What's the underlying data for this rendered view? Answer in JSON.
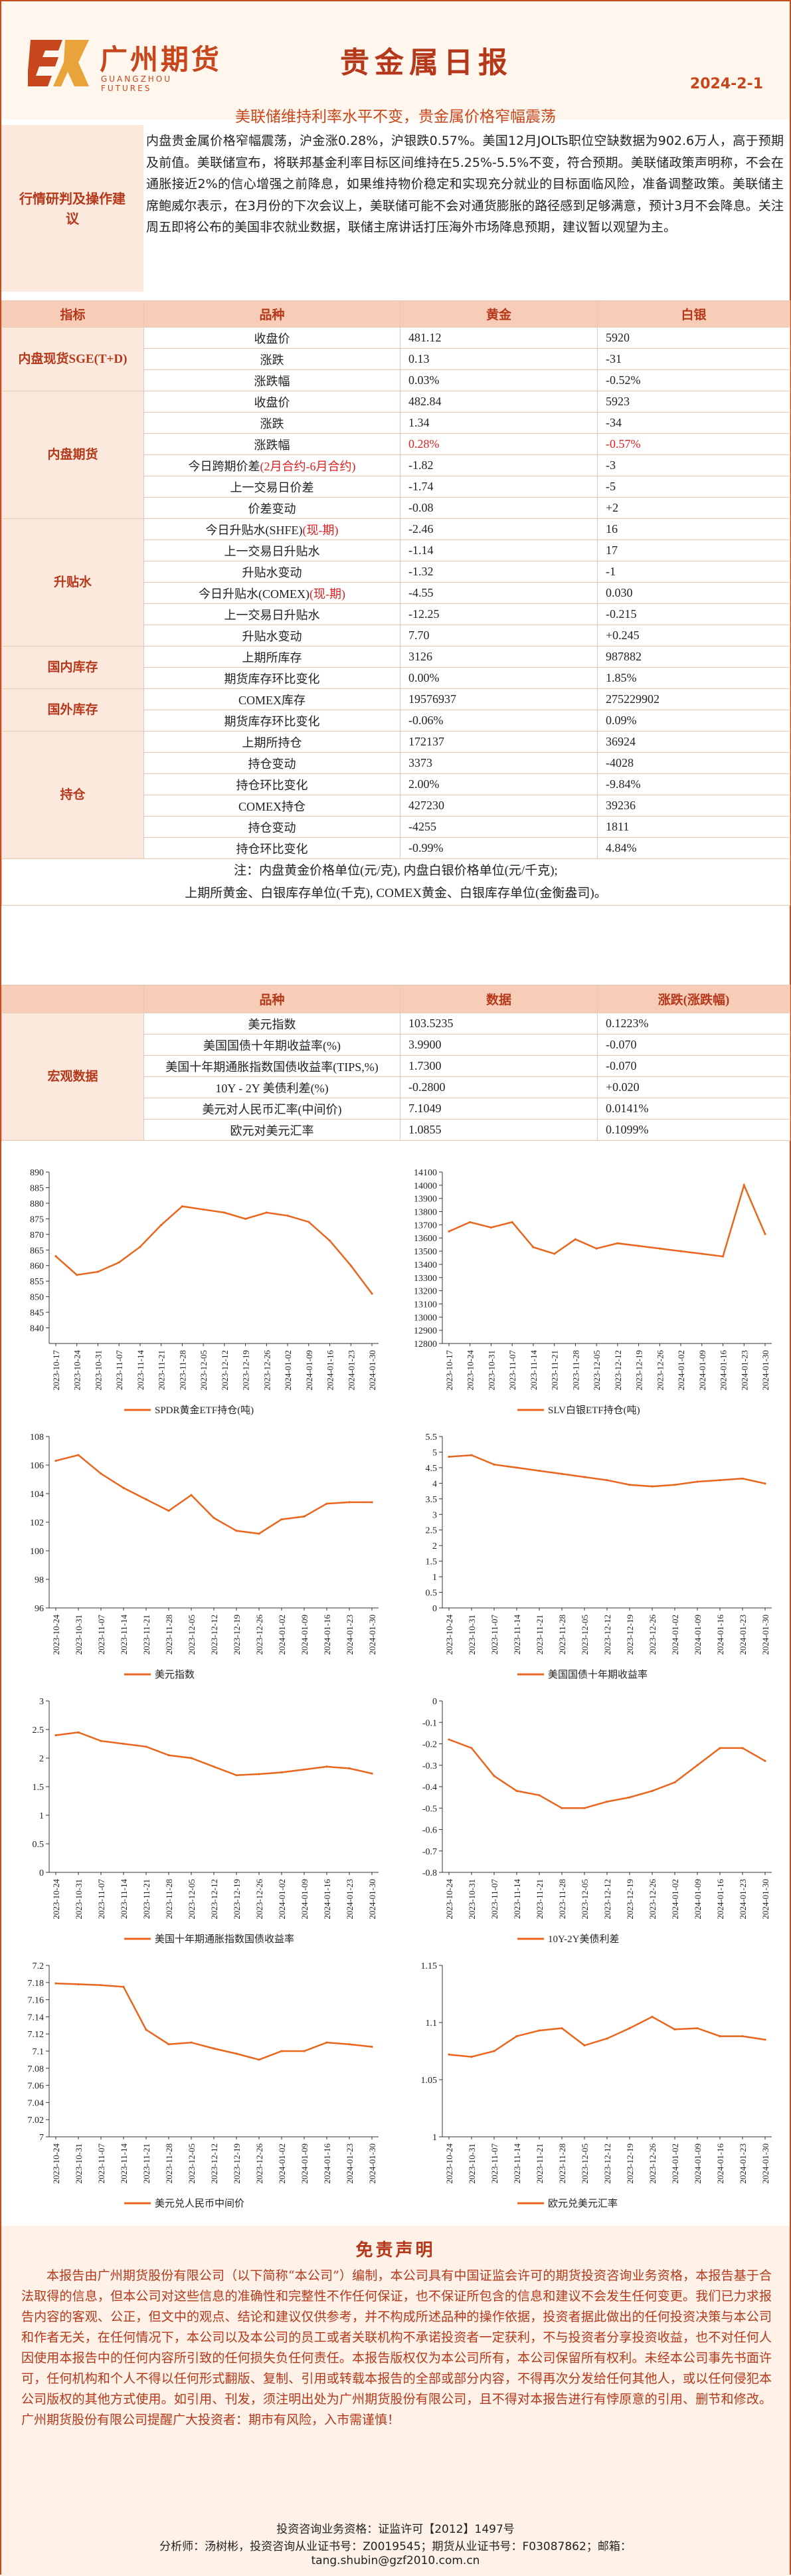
{
  "header": {
    "logo_cn": "广州期货",
    "logo_en": "GUANGZHOU FUTURES",
    "title": "贵金属日报",
    "date": "2024-2-1",
    "subtitle": "美联储维持利率水平不变，贵金属价格窄幅震荡",
    "colors": {
      "brand": "#c8461c",
      "label_bg": "#fce9de",
      "head_bg": "#f7cdb8",
      "line": "#e8661e"
    }
  },
  "view": {
    "label": "行情研判及操作建议",
    "text": "内盘贵金属价格窄幅震荡，沪金涨0.28%，沪银跌0.57%。美国12月JOLTs职位空缺数据为902.6万人，高于预期及前值。美联储宣布，将联邦基金利率目标区间维持在5.25%-5.5%不变，符合预期。美联储政策声明称，不会在通胀接近2%的信心增强之前降息，如果维持物价稳定和实现充分就业的目标面临风险，准备调整政策。美联储主席鲍威尔表示，在3月份的下次会议上，美联储可能不会对通货膨胀的路径感到足够满意，预计3月不会降息。关注周五即将公布的美国非农就业数据，联储主席讲话打压海外市场降息预期，建议暂以观望为主。"
  },
  "table1": {
    "headers": [
      "指标",
      "品种",
      "黄金",
      "白银"
    ],
    "groups": [
      {
        "name": "内盘现货SGE(T+D)",
        "rows": [
          {
            "label": "收盘价",
            "gold": "481.12",
            "silver": "5920"
          },
          {
            "label": "涨跌",
            "gold": "0.13",
            "silver": "-31"
          },
          {
            "label": "涨跌幅",
            "gold": "0.03%",
            "silver": "-0.52%"
          }
        ]
      },
      {
        "name": "内盘期货",
        "rows": [
          {
            "label": "收盘价",
            "gold": "482.84",
            "silver": "5923"
          },
          {
            "label": "涨跌",
            "gold": "1.34",
            "silver": "-34"
          },
          {
            "label": "涨跌幅",
            "gold": "0.28%",
            "silver": "-0.57%",
            "red": true
          },
          {
            "label": "今日跨期价差",
            "label_red": "(2月合约-6月合约)",
            "gold": "-1.82",
            "silver": "-3"
          },
          {
            "label": "上一交易日价差",
            "gold": "-1.74",
            "silver": "-5"
          },
          {
            "label": "价差变动",
            "gold": "-0.08",
            "silver": "+2"
          }
        ]
      },
      {
        "name": "升贴水",
        "rows": [
          {
            "label": "今日升贴水(SHFE)",
            "label_red": "(现-期)",
            "gold": "-2.46",
            "silver": "16"
          },
          {
            "label": "上一交易日升贴水",
            "gold": "-1.14",
            "silver": "17"
          },
          {
            "label": "升贴水变动",
            "gold": "-1.32",
            "silver": "-1"
          },
          {
            "label": "今日升贴水(COMEX)",
            "label_red": "(现-期)",
            "gold": "-4.55",
            "silver": "0.030"
          },
          {
            "label": "上一交易日升贴水",
            "gold": "-12.25",
            "silver": "-0.215"
          },
          {
            "label": "升贴水变动",
            "gold": "7.70",
            "silver": "+0.245"
          }
        ]
      },
      {
        "name": "国内库存",
        "rows": [
          {
            "label": "上期所库存",
            "gold": "3126",
            "silver": "987882"
          },
          {
            "label": "期货库存环比变化",
            "gold": "0.00%",
            "silver": "1.85%"
          }
        ]
      },
      {
        "name": "国外库存",
        "rows": [
          {
            "label": "COMEX库存",
            "gold": "19576937",
            "silver": "275229902"
          },
          {
            "label": "期货库存环比变化",
            "gold": "-0.06%",
            "silver": "0.09%"
          }
        ]
      },
      {
        "name": "持仓",
        "rows": [
          {
            "label": "上期所持仓",
            "gold": "172137",
            "silver": "36924"
          },
          {
            "label": "持仓变动",
            "gold": "3373",
            "silver": "-4028"
          },
          {
            "label": "持仓环比变化",
            "gold": "2.00%",
            "silver": "-9.84%"
          },
          {
            "label": "COMEX持仓",
            "gold": "427230",
            "silver": "39236"
          },
          {
            "label": "持仓变动",
            "gold": "-4255",
            "silver": "1811"
          },
          {
            "label": "持仓环比变化",
            "gold": "-0.99%",
            "silver": "4.84%"
          }
        ]
      }
    ],
    "note1": "注：内盘黄金价格单位(元/克), 内盘白银价格单位(元/千克);",
    "note2": "上期所黄金、白银库存单位(千克), COMEX黄金、白银库存单位(金衡盎司)。"
  },
  "table2": {
    "headers": [
      "",
      "品种",
      "数据",
      "涨跌(涨跌幅)"
    ],
    "group": "宏观数据",
    "rows": [
      {
        "label": "美元指数",
        "value": "103.5235",
        "change": "0.1223%"
      },
      {
        "label": "美国国债十年期收益率(%)",
        "value": "3.9900",
        "change": "-0.070"
      },
      {
        "label": "美国十年期通胀指数国债收益率(TIPS,%)",
        "value": "1.7300",
        "change": "-0.070"
      },
      {
        "label": "10Y - 2Y 美债利差(%)",
        "value": "-0.2800",
        "change": "+0.020"
      },
      {
        "label": "美元对人民币汇率(中间价)",
        "value": "7.1049",
        "change": "0.0141%"
      },
      {
        "label": "欧元对美元汇率",
        "value": "1.0855",
        "change": "0.1099%"
      }
    ]
  },
  "chart_data": [
    {
      "type": "line",
      "title": "",
      "legend": "SPDR黄金ETF持仓(吨)",
      "ylim": [
        835,
        890
      ],
      "yticks": [
        840,
        845,
        850,
        855,
        860,
        865,
        870,
        875,
        880,
        885,
        890
      ],
      "x": [
        "2023-10-17",
        "2023-10-24",
        "2023-10-31",
        "2023-11-07",
        "2023-11-14",
        "2023-11-21",
        "2023-11-28",
        "2023-12-05",
        "2023-12-12",
        "2023-12-19",
        "2023-12-26",
        "2024-01-02",
        "2024-01-09",
        "2024-01-16",
        "2024-01-23",
        "2024-01-30"
      ],
      "values": [
        863,
        857,
        858,
        861,
        866,
        873,
        879,
        878,
        877,
        875,
        877,
        876,
        874,
        868,
        860,
        851
      ]
    },
    {
      "type": "line",
      "title": "",
      "legend": "SLV白银ETF持仓(吨)",
      "ylim": [
        12800,
        14100
      ],
      "yticks": [
        12800,
        12900,
        13000,
        13100,
        13200,
        13300,
        13400,
        13500,
        13600,
        13700,
        13800,
        13900,
        14000,
        14100
      ],
      "x": [
        "2023-10-17",
        "2023-10-24",
        "2023-10-31",
        "2023-11-07",
        "2023-11-14",
        "2023-11-21",
        "2023-11-28",
        "2023-12-05",
        "2023-12-12",
        "2023-12-19",
        "2023-12-26",
        "2024-01-02",
        "2024-01-09",
        "2024-01-16",
        "2024-01-23",
        "2024-01-30"
      ],
      "values": [
        13650,
        13720,
        13680,
        13720,
        13530,
        13480,
        13590,
        13520,
        13560,
        13540,
        13520,
        13500,
        13480,
        13460,
        14000,
        13630
      ]
    },
    {
      "type": "line",
      "title": "",
      "legend": "美元指数",
      "ylim": [
        96,
        108
      ],
      "yticks": [
        96,
        98,
        100,
        102,
        104,
        106,
        108
      ],
      "x": [
        "2023-10-24",
        "2023-10-31",
        "2023-11-07",
        "2023-11-14",
        "2023-11-21",
        "2023-11-28",
        "2023-12-05",
        "2023-12-12",
        "2023-12-19",
        "2023-12-26",
        "2024-01-02",
        "2024-01-09",
        "2024-01-16",
        "2024-01-23",
        "2024-01-30"
      ],
      "values": [
        106.3,
        106.7,
        105.4,
        104.4,
        103.6,
        102.8,
        103.9,
        102.3,
        101.4,
        101.2,
        102.2,
        102.4,
        103.3,
        103.4,
        103.4
      ]
    },
    {
      "type": "line",
      "title": "",
      "legend": "美国国债十年期收益率",
      "ylim": [
        0,
        5.5
      ],
      "yticks": [
        0,
        0.5,
        1,
        1.5,
        2,
        2.5,
        3,
        3.5,
        4,
        4.5,
        5,
        5.5
      ],
      "x": [
        "2023-10-24",
        "2023-10-31",
        "2023-11-07",
        "2023-11-14",
        "2023-11-21",
        "2023-11-28",
        "2023-12-05",
        "2023-12-12",
        "2023-12-19",
        "2023-12-26",
        "2024-01-02",
        "2024-01-09",
        "2024-01-16",
        "2024-01-23",
        "2024-01-30"
      ],
      "values": [
        4.85,
        4.9,
        4.6,
        4.5,
        4.4,
        4.3,
        4.2,
        4.1,
        3.95,
        3.9,
        3.95,
        4.05,
        4.1,
        4.15,
        3.99
      ]
    },
    {
      "type": "line",
      "title": "",
      "legend": "美国十年期通胀指数国债收益率",
      "ylim": [
        0,
        3
      ],
      "yticks": [
        0,
        0.5,
        1,
        1.5,
        2,
        2.5,
        3
      ],
      "x": [
        "2023-10-24",
        "2023-10-31",
        "2023-11-07",
        "2023-11-14",
        "2023-11-21",
        "2023-11-28",
        "2023-12-05",
        "2023-12-12",
        "2023-12-19",
        "2023-12-26",
        "2024-01-02",
        "2024-01-09",
        "2024-01-16",
        "2024-01-23",
        "2024-01-30"
      ],
      "values": [
        2.4,
        2.45,
        2.3,
        2.25,
        2.2,
        2.05,
        2.0,
        1.85,
        1.7,
        1.72,
        1.75,
        1.8,
        1.85,
        1.82,
        1.73
      ]
    },
    {
      "type": "line",
      "title": "",
      "legend": "10Y-2Y美债利差",
      "ylim": [
        -0.8,
        0
      ],
      "yticks": [
        -0.8,
        -0.7,
        -0.6,
        -0.5,
        -0.4,
        -0.3,
        -0.2,
        -0.1,
        0
      ],
      "x": [
        "2023-10-24",
        "2023-10-31",
        "2023-11-07",
        "2023-11-14",
        "2023-11-21",
        "2023-11-28",
        "2023-12-05",
        "2023-12-12",
        "2023-12-19",
        "2023-12-26",
        "2024-01-02",
        "2024-01-09",
        "2024-01-16",
        "2024-01-23",
        "2024-01-30"
      ],
      "values": [
        -0.18,
        -0.22,
        -0.35,
        -0.42,
        -0.44,
        -0.5,
        -0.5,
        -0.47,
        -0.45,
        -0.42,
        -0.38,
        -0.3,
        -0.22,
        -0.22,
        -0.28
      ]
    },
    {
      "type": "line",
      "title": "",
      "legend": "美元兑人民币中间价",
      "ylim": [
        7.0,
        7.2
      ],
      "yticks": [
        7.0,
        7.02,
        7.04,
        7.06,
        7.08,
        7.1,
        7.12,
        7.14,
        7.16,
        7.18,
        7.2
      ],
      "x": [
        "2023-10-24",
        "2023-10-31",
        "2023-11-07",
        "2023-11-14",
        "2023-11-21",
        "2023-11-28",
        "2023-12-05",
        "2023-12-12",
        "2023-12-19",
        "2023-12-26",
        "2024-01-02",
        "2024-01-09",
        "2024-01-16",
        "2024-01-23",
        "2024-01-30"
      ],
      "values": [
        7.179,
        7.178,
        7.177,
        7.175,
        7.125,
        7.108,
        7.11,
        7.103,
        7.097,
        7.09,
        7.1,
        7.1,
        7.11,
        7.108,
        7.105
      ]
    },
    {
      "type": "line",
      "title": "",
      "legend": "欧元兑美元汇率",
      "ylim": [
        1.0,
        1.15
      ],
      "yticks": [
        1.0,
        1.05,
        1.1,
        1.15
      ],
      "x": [
        "2023-10-24",
        "2023-10-31",
        "2023-11-07",
        "2023-11-14",
        "2023-11-21",
        "2023-11-28",
        "2023-12-05",
        "2023-12-12",
        "2023-12-19",
        "2023-12-26",
        "2024-01-02",
        "2024-01-09",
        "2024-01-16",
        "2024-01-23",
        "2024-01-30"
      ],
      "values": [
        1.072,
        1.07,
        1.075,
        1.088,
        1.093,
        1.095,
        1.08,
        1.086,
        1.095,
        1.105,
        1.094,
        1.095,
        1.088,
        1.088,
        1.085
      ]
    }
  ],
  "disclaimer": {
    "title": "免责声明",
    "body": "本报告由广州期货股份有限公司（以下简称“本公司”）编制，本公司具有中国证监会许可的期货投资咨询业务资格，本报告基于合法取得的信息，但本公司对这些信息的准确性和完整性不作任何保证，也不保证所包含的信息和建议不会发生任何变更。我们已力求报告内容的客观、公正，但文中的观点、结论和建议仅供参考，并不构成所述品种的操作依据，投资者据此做出的任何投资决策与本公司和作者无关，在任何情况下，本公司以及本公司的员工或者关联机构不承诺投资者一定获利，不与投资者分享投资收益，也不对任何人因使用本报告中的任何内容所引致的任何损失负任何责任。本报告版权仅为本公司所有，本公司保留所有权利。未经本公司事先书面许可，任何机构和个人不得以任何形式翻版、复制、引用或转载本报告的全部或部分内容，不得再次分发给任何其他人，或以任何侵犯本公司版权的其他方式使用。如引用、刊发，须注明出处为广州期货股份有限公司，且不得对本报告进行有悖原意的引用、删节和修改。广州期货股份有限公司提醒广大投资者：期市有风险，入市需谨慎！",
    "license": "投资咨询业务资格：证监许可【2012】1497号",
    "analyst": "分析师：汤树彬，投资咨询从业证书号：Z0019545；期货从业证书号：F03087862；邮箱：",
    "email": "tang.shubin@gzf2010.com.cn"
  }
}
